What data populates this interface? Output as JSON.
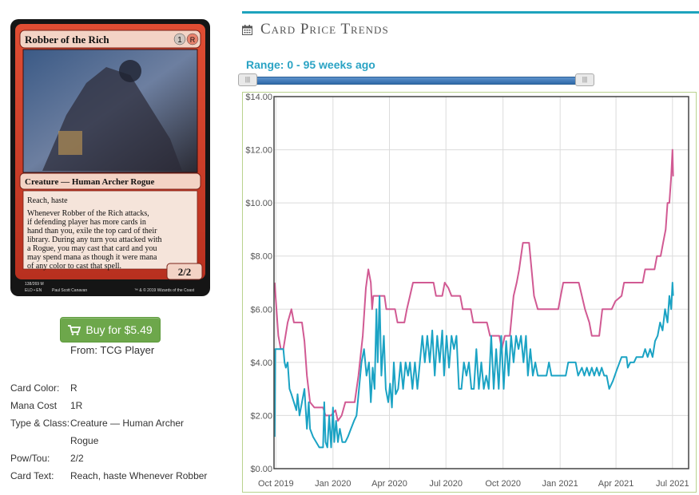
{
  "card": {
    "name": "Robber of the Rich",
    "mana_symbols": [
      "1",
      "R"
    ],
    "type_line": "Creature — Human Archer Rogue",
    "rules_text": [
      "Reach, haste",
      "Whenever Robber of the Rich attacks,",
      "if defending player has more cards in",
      "hand than you, exile the top card of their",
      "library. During any turn you attacked with",
      "a Rogue, you may cast that card and you",
      "may spend mana as though it were mana",
      "of any color to cast that spell."
    ],
    "pt": "2/2",
    "collector": "138/269 M",
    "set_line": "ELD • EN",
    "artist": "Paul Scott Canavan",
    "copyright": "™ & © 2019 Wizards of the Coast",
    "colors": {
      "frame": "#d5412a",
      "frame_dark": "#8e1f14",
      "text_box": "#f5e4da",
      "title_bar": "#f3d3c5"
    }
  },
  "buy": {
    "label": "Buy for $5.49",
    "icon": "cart-icon",
    "source": "From: TCG Player",
    "color": "#6da74b"
  },
  "details": [
    {
      "label": "Card Color:",
      "value": "R"
    },
    {
      "label": "Mana Cost",
      "value": "1R"
    },
    {
      "label": "Type & Class:",
      "value": "Creature — Human Archer Rogue"
    },
    {
      "label": "Pow/Tou:",
      "value": "2/2"
    },
    {
      "label": "Card Text:",
      "value": "Reach, haste Whenever Robber"
    }
  ],
  "section": {
    "title": "Card Price Trends",
    "icon": "calendar-icon",
    "accent": "#1ea3bd"
  },
  "range": {
    "label": "Range: 0 - 95 weeks ago",
    "from_weeks": 0,
    "to_weeks": 95
  },
  "chart_data": {
    "type": "line",
    "title": "",
    "xlabel": "",
    "ylabel": "",
    "ylim": [
      0,
      14
    ],
    "yticks": [
      "$0.00",
      "$2.00",
      "$4.00",
      "$6.00",
      "$8.00",
      "$10.00",
      "$12.00",
      "$14.00"
    ],
    "ytick_values": [
      0,
      2,
      4,
      6,
      8,
      10,
      12,
      14
    ],
    "xlim": [
      "2019-09-28",
      "2021-07-27"
    ],
    "xticks": [
      {
        "date": "2019-10-01",
        "label": "Oct 2019"
      },
      {
        "date": "2020-01-01",
        "label": "Jan 2020"
      },
      {
        "date": "2020-04-01",
        "label": "Apr 2020"
      },
      {
        "date": "2020-07-01",
        "label": "Jul 2020"
      },
      {
        "date": "2020-10-01",
        "label": "Oct 2020"
      },
      {
        "date": "2021-01-01",
        "label": "Jan 2021"
      },
      {
        "date": "2021-04-01",
        "label": "Apr 2021"
      },
      {
        "date": "2021-07-01",
        "label": "Jul 2021"
      }
    ],
    "grid": true,
    "series": [
      {
        "color": "#d15a93",
        "points": [
          [
            "2019-09-29",
            7.0
          ],
          [
            "2019-10-02",
            6.0
          ],
          [
            "2019-10-05",
            5.0
          ],
          [
            "2019-10-09",
            4.5
          ],
          [
            "2019-10-13",
            4.5
          ],
          [
            "2019-10-20",
            5.5
          ],
          [
            "2019-10-26",
            6.0
          ],
          [
            "2019-10-30",
            5.5
          ],
          [
            "2019-11-12",
            5.5
          ],
          [
            "2019-11-16",
            4.8
          ],
          [
            "2019-11-20",
            3.5
          ],
          [
            "2019-11-25",
            2.5
          ],
          [
            "2019-12-02",
            2.3
          ],
          [
            "2019-12-16",
            2.3
          ],
          [
            "2019-12-20",
            2.0
          ],
          [
            "2019-12-29",
            2.0
          ],
          [
            "2020-01-05",
            2.2
          ],
          [
            "2020-01-09",
            1.8
          ],
          [
            "2020-01-15",
            2.0
          ],
          [
            "2020-01-21",
            2.5
          ],
          [
            "2020-02-05",
            2.5
          ],
          [
            "2020-02-11",
            3.5
          ],
          [
            "2020-02-18",
            5.0
          ],
          [
            "2020-02-23",
            6.8
          ],
          [
            "2020-02-27",
            7.5
          ],
          [
            "2020-03-02",
            7.0
          ],
          [
            "2020-03-04",
            6.0
          ],
          [
            "2020-03-06",
            6.5
          ],
          [
            "2020-03-24",
            6.5
          ],
          [
            "2020-03-27",
            6.0
          ],
          [
            "2020-04-10",
            6.0
          ],
          [
            "2020-04-14",
            5.5
          ],
          [
            "2020-04-25",
            5.5
          ],
          [
            "2020-04-29",
            6.0
          ],
          [
            "2020-05-04",
            6.5
          ],
          [
            "2020-05-09",
            7.0
          ],
          [
            "2020-06-11",
            7.0
          ],
          [
            "2020-06-15",
            6.5
          ],
          [
            "2020-06-25",
            6.5
          ],
          [
            "2020-06-29",
            7.0
          ],
          [
            "2020-07-05",
            6.8
          ],
          [
            "2020-07-10",
            6.5
          ],
          [
            "2020-07-24",
            6.5
          ],
          [
            "2020-07-28",
            6.0
          ],
          [
            "2020-08-10",
            6.0
          ],
          [
            "2020-08-14",
            5.5
          ],
          [
            "2020-09-05",
            5.5
          ],
          [
            "2020-09-10",
            5.0
          ],
          [
            "2020-09-25",
            5.0
          ],
          [
            "2020-09-29",
            4.5
          ],
          [
            "2020-10-04",
            5.0
          ],
          [
            "2020-10-12",
            5.0
          ],
          [
            "2020-10-18",
            6.5
          ],
          [
            "2020-10-23",
            7.0
          ],
          [
            "2020-10-27",
            7.5
          ],
          [
            "2020-10-30",
            8.0
          ],
          [
            "2020-11-02",
            8.5
          ],
          [
            "2020-11-12",
            8.5
          ],
          [
            "2020-11-16",
            7.5
          ],
          [
            "2020-11-20",
            6.5
          ],
          [
            "2020-11-26",
            6.0
          ],
          [
            "2020-12-29",
            6.0
          ],
          [
            "2021-01-02",
            6.5
          ],
          [
            "2021-01-06",
            7.0
          ],
          [
            "2021-01-31",
            7.0
          ],
          [
            "2021-02-05",
            6.5
          ],
          [
            "2021-02-10",
            6.0
          ],
          [
            "2021-02-17",
            5.5
          ],
          [
            "2021-02-21",
            5.0
          ],
          [
            "2021-03-05",
            5.0
          ],
          [
            "2021-03-10",
            6.0
          ],
          [
            "2021-03-25",
            6.0
          ],
          [
            "2021-03-31",
            6.3
          ],
          [
            "2021-04-10",
            6.5
          ],
          [
            "2021-04-14",
            7.0
          ],
          [
            "2021-05-14",
            7.0
          ],
          [
            "2021-05-18",
            7.5
          ],
          [
            "2021-06-02",
            7.5
          ],
          [
            "2021-06-06",
            8.0
          ],
          [
            "2021-06-12",
            8.0
          ],
          [
            "2021-06-16",
            8.5
          ],
          [
            "2021-06-20",
            9.0
          ],
          [
            "2021-06-23",
            10.0
          ],
          [
            "2021-06-26",
            10.0
          ],
          [
            "2021-06-29",
            11.0
          ],
          [
            "2021-07-01",
            12.0
          ],
          [
            "2021-07-02",
            11.0
          ]
        ]
      },
      {
        "color": "#1ba3c4",
        "points": [
          [
            "2019-09-29",
            1.2
          ],
          [
            "2019-09-30",
            4.5
          ],
          [
            "2019-10-13",
            4.5
          ],
          [
            "2019-10-15",
            4.0
          ],
          [
            "2019-10-17",
            3.8
          ],
          [
            "2019-10-20",
            4.0
          ],
          [
            "2019-10-23",
            3.0
          ],
          [
            "2019-10-26",
            2.8
          ],
          [
            "2019-10-30",
            2.5
          ],
          [
            "2019-11-03",
            2.2
          ],
          [
            "2019-11-05",
            2.8
          ],
          [
            "2019-11-08",
            2.0
          ],
          [
            "2019-11-12",
            2.5
          ],
          [
            "2019-11-16",
            3.0
          ],
          [
            "2019-11-20",
            1.5
          ],
          [
            "2019-11-23",
            2.5
          ],
          [
            "2019-11-25",
            1.5
          ],
          [
            "2019-11-30",
            1.2
          ],
          [
            "2019-12-05",
            1.0
          ],
          [
            "2019-12-10",
            0.8
          ],
          [
            "2019-12-16",
            0.8
          ],
          [
            "2019-12-18",
            2.5
          ],
          [
            "2019-12-20",
            1.0
          ],
          [
            "2019-12-23",
            0.8
          ],
          [
            "2019-12-26",
            2.0
          ],
          [
            "2019-12-29",
            0.8
          ],
          [
            "2020-01-01",
            2.3
          ],
          [
            "2020-01-03",
            1.0
          ],
          [
            "2020-01-06",
            1.8
          ],
          [
            "2020-01-09",
            1.0
          ],
          [
            "2020-01-12",
            1.5
          ],
          [
            "2020-01-16",
            1.0
          ],
          [
            "2020-01-21",
            1.0
          ],
          [
            "2020-01-25",
            1.2
          ],
          [
            "2020-01-30",
            1.5
          ],
          [
            "2020-02-04",
            1.8
          ],
          [
            "2020-02-08",
            2.0
          ],
          [
            "2020-02-12",
            3.0
          ],
          [
            "2020-02-16",
            4.0
          ],
          [
            "2020-02-20",
            4.5
          ],
          [
            "2020-02-24",
            3.5
          ],
          [
            "2020-02-28",
            4.0
          ],
          [
            "2020-03-02",
            2.5
          ],
          [
            "2020-03-05",
            3.8
          ],
          [
            "2020-03-08",
            3.0
          ],
          [
            "2020-03-11",
            6.0
          ],
          [
            "2020-03-13",
            4.0
          ],
          [
            "2020-03-16",
            6.5
          ],
          [
            "2020-03-19",
            3.5
          ],
          [
            "2020-03-23",
            5.0
          ],
          [
            "2020-03-26",
            3.0
          ],
          [
            "2020-03-30",
            2.5
          ],
          [
            "2020-04-02",
            3.2
          ],
          [
            "2020-04-05",
            2.3
          ],
          [
            "2020-04-08",
            4.0
          ],
          [
            "2020-04-11",
            2.8
          ],
          [
            "2020-04-15",
            3.0
          ],
          [
            "2020-04-19",
            4.0
          ],
          [
            "2020-04-23",
            3.0
          ],
          [
            "2020-04-27",
            4.0
          ],
          [
            "2020-05-01",
            3.5
          ],
          [
            "2020-05-04",
            4.0
          ],
          [
            "2020-05-08",
            3.0
          ],
          [
            "2020-05-12",
            4.0
          ],
          [
            "2020-05-16",
            3.0
          ],
          [
            "2020-05-20",
            4.0
          ],
          [
            "2020-05-24",
            5.0
          ],
          [
            "2020-05-28",
            4.0
          ],
          [
            "2020-06-01",
            5.0
          ],
          [
            "2020-06-05",
            4.0
          ],
          [
            "2020-06-09",
            5.2
          ],
          [
            "2020-06-13",
            3.5
          ],
          [
            "2020-06-17",
            5.0
          ],
          [
            "2020-06-21",
            4.0
          ],
          [
            "2020-06-25",
            5.2
          ],
          [
            "2020-06-28",
            3.5
          ],
          [
            "2020-07-02",
            5.0
          ],
          [
            "2020-07-06",
            3.8
          ],
          [
            "2020-07-10",
            5.0
          ],
          [
            "2020-07-14",
            4.5
          ],
          [
            "2020-07-18",
            5.0
          ],
          [
            "2020-07-22",
            3.0
          ],
          [
            "2020-07-26",
            3.0
          ],
          [
            "2020-07-30",
            4.0
          ],
          [
            "2020-08-03",
            3.5
          ],
          [
            "2020-08-07",
            4.0
          ],
          [
            "2020-08-11",
            3.0
          ],
          [
            "2020-08-15",
            3.0
          ],
          [
            "2020-08-19",
            4.5
          ],
          [
            "2020-08-23",
            3.0
          ],
          [
            "2020-08-27",
            4.0
          ],
          [
            "2020-08-31",
            3.0
          ],
          [
            "2020-09-04",
            3.5
          ],
          [
            "2020-09-08",
            3.0
          ],
          [
            "2020-09-12",
            5.0
          ],
          [
            "2020-09-16",
            3.0
          ],
          [
            "2020-09-20",
            4.5
          ],
          [
            "2020-09-24",
            3.0
          ],
          [
            "2020-09-28",
            5.0
          ],
          [
            "2020-10-02",
            3.0
          ],
          [
            "2020-10-06",
            4.8
          ],
          [
            "2020-10-10",
            3.5
          ],
          [
            "2020-10-14",
            5.0
          ],
          [
            "2020-10-18",
            4.0
          ],
          [
            "2020-10-22",
            5.0
          ],
          [
            "2020-10-26",
            4.5
          ],
          [
            "2020-10-30",
            5.0
          ],
          [
            "2020-11-03",
            4.0
          ],
          [
            "2020-11-07",
            5.0
          ],
          [
            "2020-11-10",
            3.5
          ],
          [
            "2020-11-14",
            4.5
          ],
          [
            "2020-11-18",
            3.5
          ],
          [
            "2020-11-22",
            4.0
          ],
          [
            "2020-11-26",
            3.5
          ],
          [
            "2020-12-10",
            3.5
          ],
          [
            "2020-12-14",
            4.0
          ],
          [
            "2020-12-18",
            3.5
          ],
          [
            "2021-01-10",
            3.5
          ],
          [
            "2021-01-14",
            4.0
          ],
          [
            "2021-01-26",
            4.0
          ],
          [
            "2021-01-30",
            3.5
          ],
          [
            "2021-02-05",
            3.8
          ],
          [
            "2021-02-09",
            3.5
          ],
          [
            "2021-02-13",
            3.8
          ],
          [
            "2021-02-17",
            3.5
          ],
          [
            "2021-02-21",
            3.8
          ],
          [
            "2021-02-25",
            3.5
          ],
          [
            "2021-03-01",
            3.8
          ],
          [
            "2021-03-05",
            3.5
          ],
          [
            "2021-03-09",
            3.8
          ],
          [
            "2021-03-13",
            3.5
          ],
          [
            "2021-03-17",
            3.5
          ],
          [
            "2021-03-21",
            3.0
          ],
          [
            "2021-03-27",
            3.3
          ],
          [
            "2021-04-02",
            3.7
          ],
          [
            "2021-04-10",
            4.2
          ],
          [
            "2021-04-18",
            4.2
          ],
          [
            "2021-04-20",
            3.8
          ],
          [
            "2021-04-24",
            4.0
          ],
          [
            "2021-04-30",
            4.0
          ],
          [
            "2021-05-04",
            4.2
          ],
          [
            "2021-05-14",
            4.2
          ],
          [
            "2021-05-18",
            4.5
          ],
          [
            "2021-05-22",
            4.2
          ],
          [
            "2021-05-26",
            4.5
          ],
          [
            "2021-05-30",
            4.2
          ],
          [
            "2021-06-03",
            4.8
          ],
          [
            "2021-06-07",
            5.0
          ],
          [
            "2021-06-11",
            5.5
          ],
          [
            "2021-06-15",
            5.2
          ],
          [
            "2021-06-19",
            6.0
          ],
          [
            "2021-06-23",
            5.5
          ],
          [
            "2021-06-26",
            6.5
          ],
          [
            "2021-06-29",
            6.0
          ],
          [
            "2021-07-01",
            7.0
          ],
          [
            "2021-07-02",
            6.5
          ]
        ]
      }
    ]
  }
}
